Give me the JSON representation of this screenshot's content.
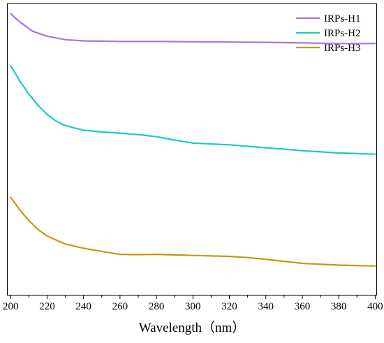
{
  "chart_data": {
    "type": "line",
    "title": "",
    "xlabel": "Wavelength（nm）",
    "ylabel": "",
    "xlim": [
      198,
      401
    ],
    "ylim": [
      0,
      1
    ],
    "xticks": [
      200,
      220,
      240,
      260,
      280,
      300,
      320,
      340,
      360,
      380,
      400
    ],
    "grid": false,
    "legend_position": "top-right",
    "series": [
      {
        "name": "IRPs-H1",
        "color": "#a874e3",
        "x": [
          200,
          205,
          212,
          220,
          230,
          240,
          260,
          280,
          300,
          320,
          340,
          360,
          380,
          400
        ],
        "y": [
          0.965,
          0.937,
          0.905,
          0.888,
          0.876,
          0.872,
          0.87,
          0.87,
          0.869,
          0.868,
          0.867,
          0.865,
          0.863,
          0.863
        ]
      },
      {
        "name": "IRPs-H2",
        "color": "#1ec8c8",
        "x": [
          200,
          205,
          210,
          215,
          220,
          225,
          230,
          240,
          250,
          260,
          270,
          280,
          290,
          300,
          320,
          340,
          360,
          380,
          400
        ],
        "y": [
          0.787,
          0.735,
          0.69,
          0.652,
          0.62,
          0.597,
          0.582,
          0.566,
          0.56,
          0.556,
          0.551,
          0.544,
          0.532,
          0.522,
          0.516,
          0.506,
          0.496,
          0.488,
          0.484
        ]
      },
      {
        "name": "IRPs-H3",
        "color": "#c89610",
        "x": [
          200,
          205,
          210,
          215,
          220,
          230,
          240,
          250,
          260,
          270,
          280,
          290,
          300,
          320,
          330,
          340,
          360,
          380,
          400
        ],
        "y": [
          0.337,
          0.293,
          0.257,
          0.226,
          0.204,
          0.176,
          0.162,
          0.151,
          0.141,
          0.14,
          0.141,
          0.139,
          0.137,
          0.134,
          0.13,
          0.124,
          0.11,
          0.104,
          0.101
        ]
      }
    ]
  }
}
